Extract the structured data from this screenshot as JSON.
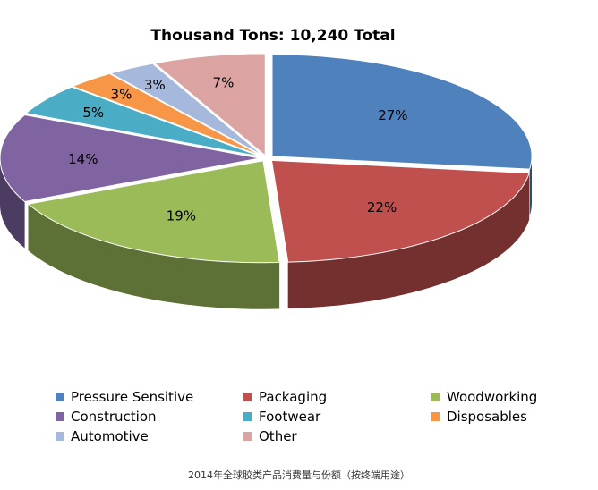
{
  "chart_data": {
    "type": "pie",
    "title": "Thousand Tons: 10,240 Total",
    "categories": [
      "Pressure Sensitive",
      "Packaging",
      "Woodworking",
      "Construction",
      "Footwear",
      "Disposables",
      "Automotive",
      "Other"
    ],
    "values": [
      27,
      22,
      19,
      14,
      5,
      3,
      3,
      7
    ],
    "data_labels": [
      "27%",
      "22%",
      "19%",
      "14%",
      "5%",
      "3%",
      "3%",
      "7%"
    ],
    "colors": [
      "#4f81bd",
      "#c0504d",
      "#9bbb59",
      "#8064a2",
      "#4bacc6",
      "#f79646",
      "#a6b8dc",
      "#dba4a2"
    ],
    "style": "3d-exploded",
    "legend_position": "bottom"
  },
  "caption": "2014年全球胶类产品消费量与份额（按终端用途）"
}
